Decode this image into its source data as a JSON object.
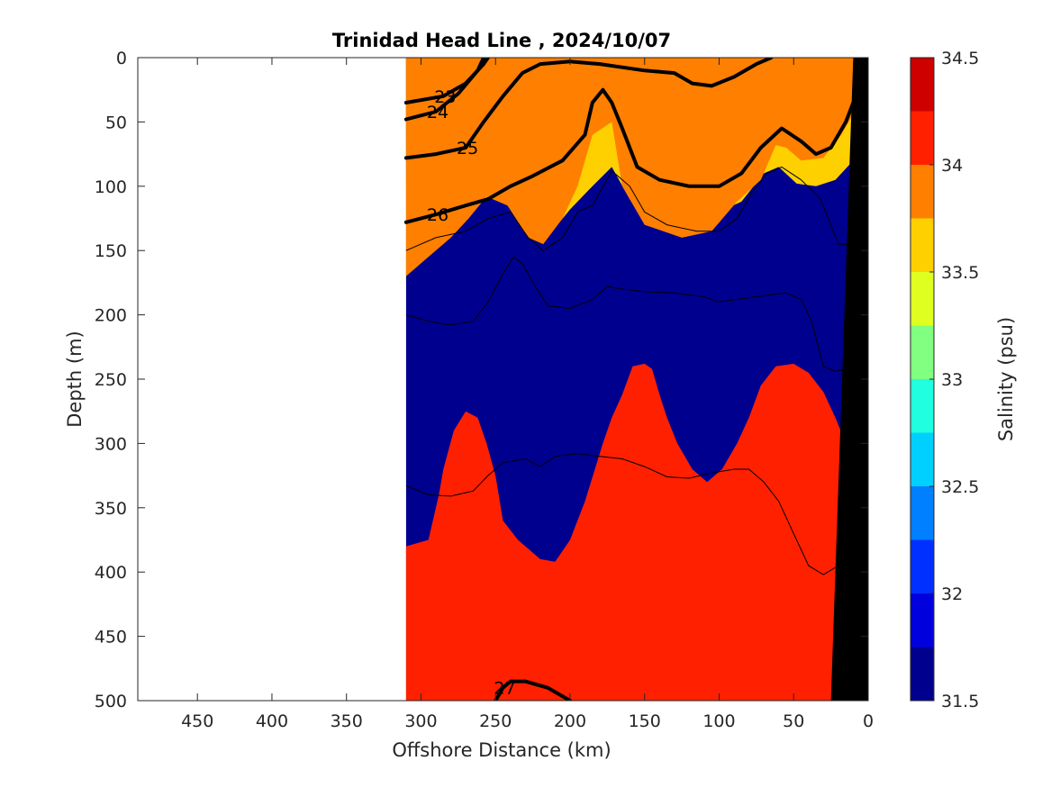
{
  "chart_data": {
    "type": "heatmap",
    "title": "Trinidad Head Line , 2024/10/07",
    "xlabel": "Offshore Distance (km)",
    "ylabel": "Depth (m)",
    "colorbar_label": "Salinity (psu)",
    "xlim": [
      490,
      0
    ],
    "ylim": [
      0,
      500
    ],
    "x_ticks": [
      "450",
      "400",
      "350",
      "300",
      "250",
      "200",
      "150",
      "100",
      "50",
      "0"
    ],
    "y_ticks": [
      "0",
      "50",
      "100",
      "150",
      "200",
      "250",
      "300",
      "350",
      "400",
      "450",
      "500"
    ],
    "colorbar_ticks": [
      "34.5",
      "34",
      "33.5",
      "33",
      "32.5",
      "32",
      "31.5"
    ],
    "colorbar_levels": [
      31.5,
      31.75,
      32.0,
      32.25,
      32.5,
      32.75,
      33.0,
      33.25,
      33.5,
      33.75,
      34.0,
      34.25,
      34.5
    ],
    "colorbar_colors": [
      "#00008f",
      "#0000df",
      "#0030ff",
      "#0080ff",
      "#00d0ff",
      "#20ffdf",
      "#80ff80",
      "#dfff20",
      "#ffd000",
      "#ff7f00",
      "#ff2000",
      "#cf0000"
    ],
    "data_extent_km": [
      310,
      0
    ],
    "salinity_bands": [
      {
        "level": 31.75,
        "color": "#0000df",
        "boundary": [
          [
            310,
            0
          ],
          [
            245,
            0
          ],
          [
            258,
            20
          ],
          [
            268,
            40
          ],
          [
            278,
            50
          ],
          [
            295,
            58
          ],
          [
            310,
            60
          ]
        ]
      },
      {
        "level": 32.0,
        "color": "#0030ff",
        "boundary": [
          [
            310,
            0
          ],
          [
            238,
            0
          ],
          [
            250,
            30
          ],
          [
            262,
            58
          ],
          [
            280,
            68
          ],
          [
            295,
            72
          ],
          [
            310,
            74
          ]
        ]
      },
      {
        "level": 32.25,
        "color": "#0080ff",
        "boundary": [
          [
            310,
            0
          ],
          [
            228,
            0
          ],
          [
            242,
            30
          ],
          [
            255,
            62
          ],
          [
            270,
            78
          ],
          [
            290,
            84
          ],
          [
            310,
            88
          ]
        ]
      },
      {
        "level": 32.5,
        "color": "#00d0ff",
        "boundary": [
          [
            310,
            0
          ],
          [
            215,
            0
          ],
          [
            232,
            30
          ],
          [
            248,
            60
          ],
          [
            262,
            86
          ],
          [
            285,
            94
          ],
          [
            310,
            98
          ]
        ]
      },
      {
        "level": 32.75,
        "color": "#20ffdf",
        "boundary": [
          [
            310,
            0
          ],
          [
            200,
            0
          ],
          [
            222,
            25
          ],
          [
            238,
            55
          ],
          [
            252,
            92
          ],
          [
            280,
            100
          ],
          [
            310,
            106
          ]
        ]
      },
      {
        "level": 33.0,
        "color": "#80ff80",
        "boundary": [
          [
            310,
            0
          ],
          [
            190,
            0
          ],
          [
            215,
            18
          ],
          [
            232,
            48
          ],
          [
            246,
            100
          ],
          [
            275,
            110
          ],
          [
            310,
            116
          ]
        ]
      },
      {
        "level": 33.25,
        "color": "#dfff20",
        "boundary": [
          [
            310,
            0
          ],
          [
            185,
            0
          ],
          [
            208,
            15
          ],
          [
            228,
            40
          ],
          [
            240,
            90
          ],
          [
            260,
            108
          ],
          [
            280,
            120
          ],
          [
            310,
            128
          ]
        ]
      },
      {
        "level": 33.5,
        "color": "#ffd000",
        "boundary": [
          [
            310,
            0
          ],
          [
            0,
            0
          ],
          [
            0,
            60
          ],
          [
            10,
            80
          ],
          [
            22,
            95
          ],
          [
            35,
            100
          ],
          [
            48,
            98
          ],
          [
            60,
            85
          ],
          [
            70,
            90
          ],
          [
            85,
            112
          ],
          [
            100,
            120
          ],
          [
            120,
            128
          ],
          [
            140,
            125
          ],
          [
            160,
            110
          ],
          [
            172,
            85
          ],
          [
            185,
            100
          ],
          [
            200,
            118
          ],
          [
            212,
            135
          ],
          [
            222,
            140
          ],
          [
            232,
            110
          ],
          [
            242,
            98
          ],
          [
            252,
            105
          ],
          [
            262,
            115
          ],
          [
            272,
            120
          ],
          [
            285,
            125
          ],
          [
            300,
            135
          ],
          [
            310,
            140
          ]
        ]
      },
      {
        "level": 33.75,
        "color": "#ff7f00",
        "boundary": [
          [
            310,
            0
          ],
          [
            0,
            0
          ],
          [
            0,
            25
          ],
          [
            8,
            40
          ],
          [
            18,
            60
          ],
          [
            30,
            78
          ],
          [
            45,
            80
          ],
          [
            55,
            70
          ],
          [
            62,
            68
          ],
          [
            72,
            95
          ],
          [
            88,
            112
          ],
          [
            105,
            135
          ],
          [
            125,
            140
          ],
          [
            150,
            130
          ],
          [
            165,
            100
          ],
          [
            172,
            50
          ],
          [
            185,
            60
          ],
          [
            195,
            100
          ],
          [
            205,
            125
          ],
          [
            218,
            145
          ],
          [
            228,
            140
          ],
          [
            242,
            115
          ],
          [
            256,
            108
          ],
          [
            268,
            125
          ],
          [
            280,
            140
          ],
          [
            295,
            155
          ],
          [
            310,
            170
          ]
        ]
      },
      {
        "level": 34.0,
        "color": "#ff2000",
        "boundary": [
          [
            310,
            380
          ],
          [
            295,
            375
          ],
          [
            288,
            340
          ],
          [
            285,
            320
          ],
          [
            278,
            290
          ],
          [
            270,
            275
          ],
          [
            262,
            280
          ],
          [
            256,
            300
          ],
          [
            250,
            325
          ],
          [
            245,
            360
          ],
          [
            235,
            375
          ],
          [
            220,
            390
          ],
          [
            210,
            392
          ],
          [
            200,
            375
          ],
          [
            190,
            345
          ],
          [
            178,
            300
          ],
          [
            172,
            280
          ],
          [
            165,
            262
          ],
          [
            158,
            240
          ],
          [
            150,
            238
          ],
          [
            145,
            242
          ],
          [
            140,
            262
          ],
          [
            135,
            280
          ],
          [
            128,
            300
          ],
          [
            118,
            320
          ],
          [
            108,
            330
          ],
          [
            98,
            320
          ],
          [
            88,
            300
          ],
          [
            80,
            280
          ],
          [
            72,
            255
          ],
          [
            62,
            240
          ],
          [
            50,
            238
          ],
          [
            40,
            245
          ],
          [
            30,
            260
          ],
          [
            22,
            280
          ],
          [
            15,
            300
          ],
          [
            10,
            320
          ],
          [
            10,
            500
          ],
          [
            310,
            500
          ]
        ]
      }
    ],
    "density_contours": [
      {
        "label": "23",
        "values": [
          [
            310,
            35
          ],
          [
            285,
            30
          ],
          [
            270,
            20
          ],
          [
            258,
            5
          ],
          [
            255,
            0
          ]
        ]
      },
      {
        "label": "24",
        "values": [
          [
            310,
            48
          ],
          [
            290,
            42
          ],
          [
            275,
            28
          ],
          [
            262,
            10
          ],
          [
            258,
            0
          ]
        ]
      },
      {
        "label": "25",
        "values": [
          [
            310,
            78
          ],
          [
            290,
            75
          ],
          [
            270,
            70
          ],
          [
            258,
            50
          ],
          [
            245,
            30
          ],
          [
            232,
            12
          ],
          [
            220,
            5
          ],
          [
            200,
            3
          ],
          [
            180,
            5
          ],
          [
            150,
            10
          ],
          [
            130,
            12
          ],
          [
            118,
            20
          ],
          [
            105,
            22
          ],
          [
            90,
            15
          ],
          [
            75,
            5
          ],
          [
            65,
            0
          ]
        ]
      },
      {
        "label": "26",
        "values": [
          [
            310,
            128
          ],
          [
            290,
            122
          ],
          [
            270,
            115
          ],
          [
            255,
            110
          ],
          [
            240,
            100
          ],
          [
            225,
            92
          ],
          [
            205,
            80
          ],
          [
            190,
            60
          ],
          [
            185,
            35
          ],
          [
            178,
            25
          ],
          [
            172,
            35
          ],
          [
            165,
            55
          ],
          [
            155,
            85
          ],
          [
            140,
            95
          ],
          [
            120,
            100
          ],
          [
            100,
            100
          ],
          [
            85,
            90
          ],
          [
            72,
            70
          ],
          [
            58,
            55
          ],
          [
            45,
            65
          ],
          [
            35,
            75
          ],
          [
            25,
            70
          ],
          [
            15,
            50
          ],
          [
            10,
            35
          ]
        ]
      },
      {
        "label": "27",
        "values": [
          [
            250,
            500
          ],
          [
            245,
            490
          ],
          [
            240,
            485
          ],
          [
            230,
            485
          ],
          [
            215,
            490
          ],
          [
            200,
            500
          ]
        ]
      }
    ],
    "thin_contours": [
      {
        "values": [
          [
            310,
            150
          ],
          [
            290,
            140
          ],
          [
            270,
            135
          ],
          [
            255,
            125
          ],
          [
            240,
            120
          ],
          [
            228,
            140
          ],
          [
            218,
            150
          ],
          [
            205,
            140
          ],
          [
            195,
            120
          ],
          [
            185,
            115
          ],
          [
            172,
            88
          ],
          [
            160,
            100
          ],
          [
            150,
            120
          ],
          [
            135,
            130
          ],
          [
            115,
            135
          ],
          [
            100,
            135
          ],
          [
            88,
            125
          ],
          [
            78,
            105
          ],
          [
            68,
            90
          ],
          [
            58,
            85
          ],
          [
            45,
            95
          ],
          [
            32,
            110
          ],
          [
            20,
            145
          ],
          [
            12,
            145
          ]
        ]
      },
      {
        "values": [
          [
            310,
            200
          ],
          [
            295,
            205
          ],
          [
            280,
            208
          ],
          [
            265,
            205
          ],
          [
            255,
            190
          ],
          [
            245,
            168
          ],
          [
            238,
            155
          ],
          [
            232,
            160
          ],
          [
            225,
            175
          ],
          [
            215,
            193
          ],
          [
            200,
            195
          ],
          [
            185,
            188
          ],
          [
            175,
            178
          ],
          [
            165,
            180
          ],
          [
            150,
            182
          ],
          [
            130,
            183
          ],
          [
            110,
            186
          ],
          [
            100,
            190
          ],
          [
            88,
            188
          ],
          [
            70,
            185
          ],
          [
            55,
            183
          ],
          [
            45,
            188
          ],
          [
            38,
            205
          ],
          [
            30,
            240
          ],
          [
            22,
            244
          ],
          [
            14,
            242
          ]
        ]
      },
      {
        "values": [
          [
            310,
            333
          ],
          [
            295,
            340
          ],
          [
            280,
            341
          ],
          [
            265,
            337
          ],
          [
            255,
            325
          ],
          [
            245,
            315
          ],
          [
            230,
            312
          ],
          [
            220,
            318
          ],
          [
            210,
            310
          ],
          [
            195,
            308
          ],
          [
            180,
            310
          ],
          [
            165,
            312
          ],
          [
            150,
            318
          ],
          [
            135,
            326
          ],
          [
            120,
            327
          ],
          [
            105,
            323
          ],
          [
            90,
            320
          ],
          [
            80,
            320
          ],
          [
            70,
            330
          ],
          [
            60,
            345
          ],
          [
            50,
            370
          ],
          [
            40,
            395
          ],
          [
            30,
            402
          ],
          [
            20,
            395
          ]
        ]
      }
    ],
    "bottom_terrain": [
      [
        0,
        0
      ],
      [
        0,
        500
      ],
      [
        25,
        500
      ],
      [
        10,
        0
      ]
    ]
  }
}
